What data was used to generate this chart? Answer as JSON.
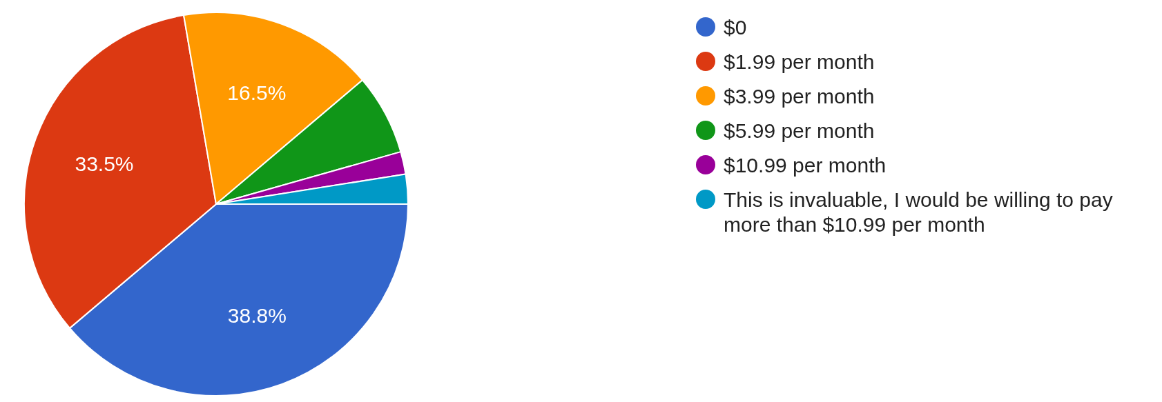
{
  "chart_data": {
    "type": "pie",
    "categories": [
      "$0",
      "$1.99 per month",
      "$3.99 per month",
      "$5.99 per month",
      "$10.99 per month",
      "This is invaluable, I would be willing to pay more than $10.99 per month"
    ],
    "values": [
      38.8,
      33.5,
      16.5,
      6.8,
      1.9,
      2.5
    ],
    "colors": [
      "#3366cc",
      "#dc3912",
      "#ff9900",
      "#109618",
      "#990099",
      "#0099c6"
    ],
    "value_labels": [
      "38.8%",
      "33.5%",
      "16.5%",
      null,
      null,
      null
    ],
    "legend": "right"
  }
}
